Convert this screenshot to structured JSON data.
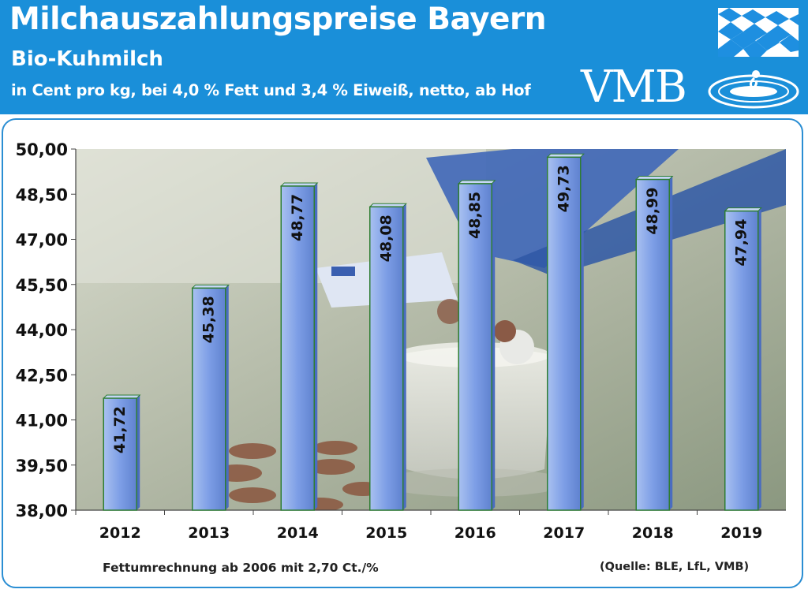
{
  "header": {
    "title": "Milchauszahlungspreise Bayern",
    "subtitle": "Bio-Kuhmilch",
    "unit_line": "in Cent pro kg, bei 4,0 % Fett und 3,4 % Eiweiß, netto, ab Hof",
    "logo_text": "VMB",
    "colors": {
      "banner": "#1a8fd9",
      "flag_blue": "#1e8fe0"
    }
  },
  "chart_data": {
    "type": "bar",
    "categories": [
      "2012",
      "2013",
      "2014",
      "2015",
      "2016",
      "2017",
      "2018",
      "2019"
    ],
    "values": [
      41.72,
      45.38,
      48.77,
      48.08,
      48.85,
      49.73,
      48.99,
      47.94
    ],
    "data_labels": [
      "41,72",
      "45,38",
      "48,77",
      "48,08",
      "48,85",
      "49,73",
      "48,99",
      "47,94"
    ],
    "ylim": [
      38.0,
      50.0
    ],
    "yticks": [
      38.0,
      39.5,
      41.0,
      42.5,
      44.0,
      45.5,
      47.0,
      48.5,
      50.0
    ],
    "ytick_labels": [
      "38,00",
      "39,50",
      "41,00",
      "42,50",
      "44,00",
      "45,50",
      "47,00",
      "48,50",
      "50,00"
    ],
    "grid": false,
    "bar_color": "#7fa2e6",
    "bar_edge_color": "#2e7d32",
    "background": "photo of milk glass, coins and euro note"
  },
  "footer": {
    "note": "Fettumrechnung ab  2006 mit 2,70 Ct./%",
    "source": "(Quelle: BLE, LfL, VMB)"
  }
}
